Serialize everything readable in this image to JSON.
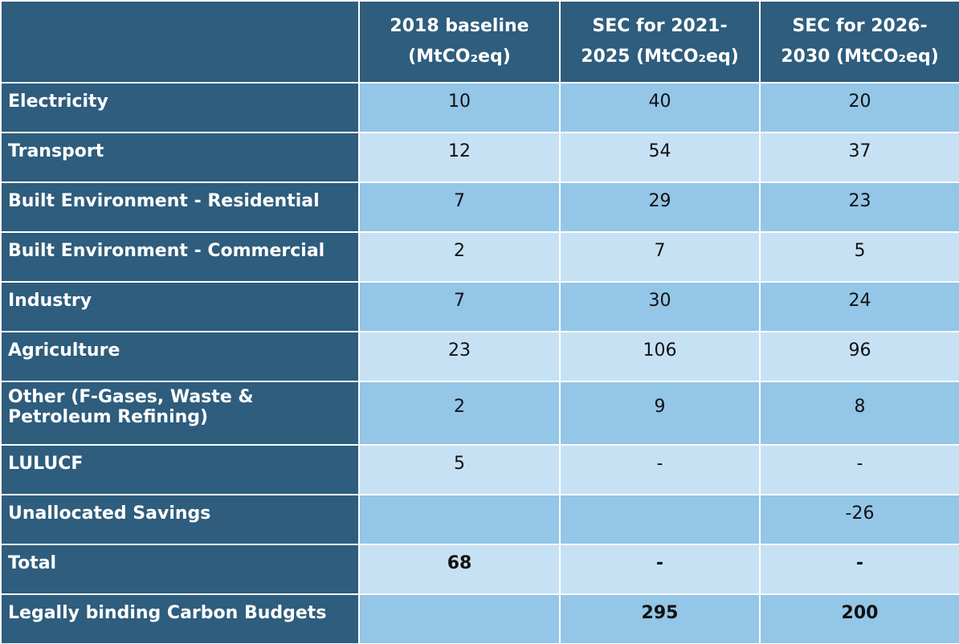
{
  "table": {
    "header": [
      "2018 baseline (MtCO₂eq)",
      "SEC for 2021-2025 (MtCO₂eq)",
      "SEC for 2026-2030 (MtCO₂eq)"
    ],
    "rows": [
      [
        "Electricity",
        10,
        40,
        20
      ],
      [
        "Transport",
        12,
        54,
        37
      ],
      [
        "Built Environment - Residential",
        7,
        29,
        23
      ],
      [
        "Built Environment - Commercial",
        2,
        7,
        5
      ],
      [
        "Industry",
        7,
        30,
        24
      ],
      [
        "Agriculture",
        23,
        106,
        96
      ],
      [
        "Other (F-Gases, Waste & Petroleum Refining)",
        2,
        9,
        8
      ],
      [
        "LULUCF",
        5,
        "-",
        "-"
      ],
      [
        "Unallocated Savings",
        null,
        null,
        -26
      ],
      [
        "Total",
        68,
        "-",
        "-"
      ],
      [
        "Legally binding Carbon Budgets",
        null,
        295,
        200
      ]
    ],
    "bold_rows": [
      9,
      10
    ]
  }
}
